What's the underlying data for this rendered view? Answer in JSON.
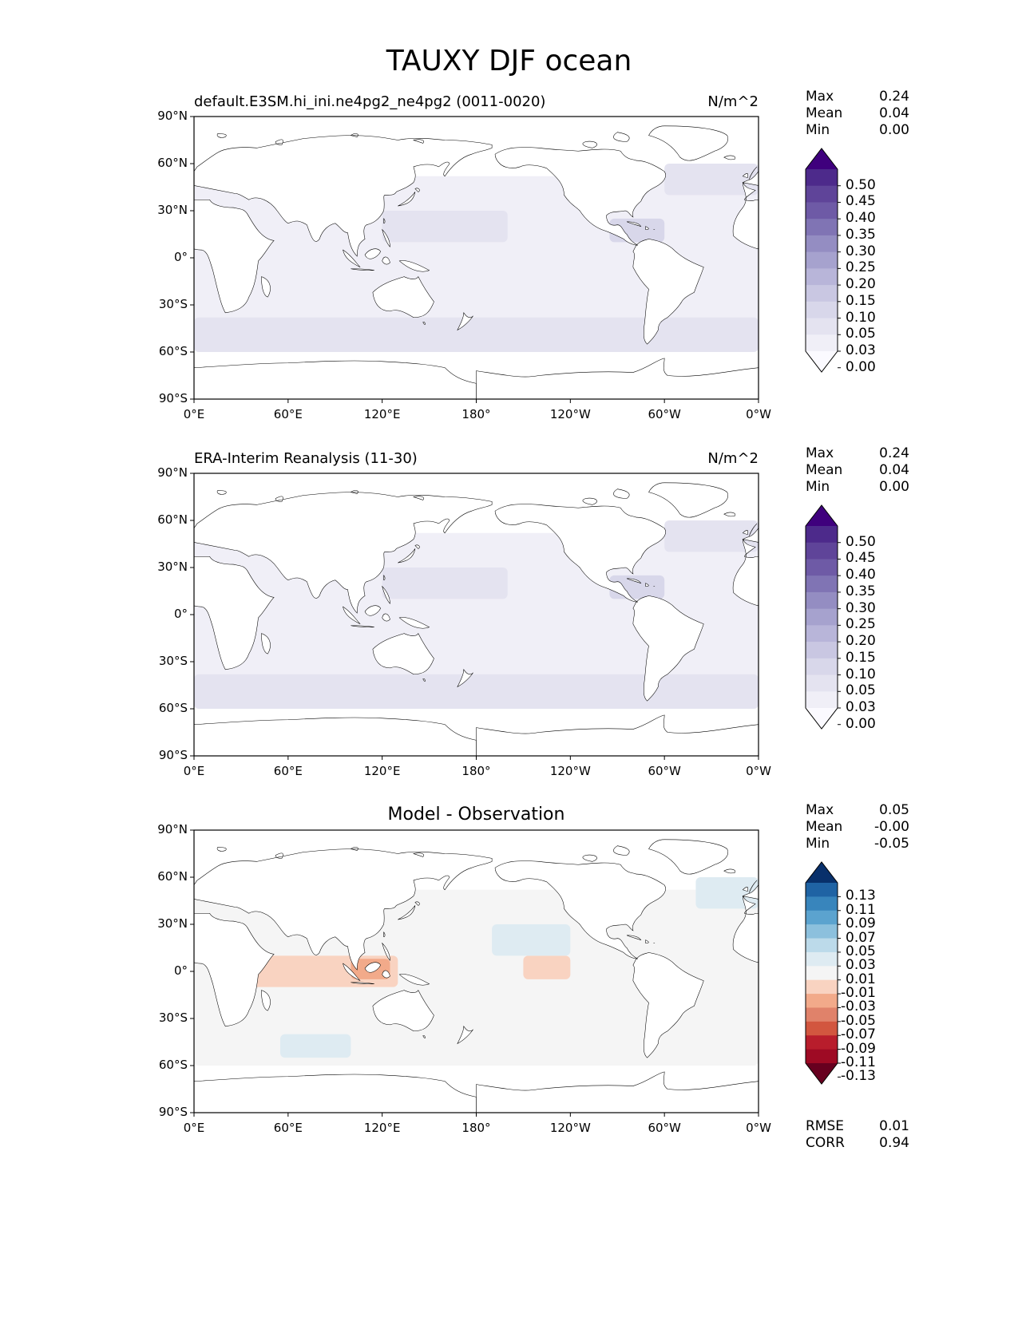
{
  "figure": {
    "title": "TAUXY DJF ocean"
  },
  "colors": {
    "purple_levels": [
      "#fbfaff",
      "#f0eff7",
      "#e4e3f0",
      "#d8d7ea",
      "#c9c7e2",
      "#b8b5d9",
      "#a6a2ce",
      "#948dc2",
      "#8074b4",
      "#6e5aa6",
      "#5f4499",
      "#4d2a8b",
      "#3f007d"
    ],
    "diff_levels": [
      "#67001f",
      "#9e0a24",
      "#b81d2c",
      "#d2563f",
      "#e0826a",
      "#f2aa8a",
      "#f9d3c1",
      "#f5f5f5",
      "#deebf2",
      "#bcdaea",
      "#8cc0dd",
      "#5ba3cf",
      "#3885bc",
      "#1f63a4",
      "#08306b"
    ],
    "land": "#ffffff",
    "coast": "#000000"
  },
  "panels": [
    {
      "left_title": "default.E3SM.hi_ini.ne4pg2_ne4pg2 (0011-0020)",
      "right_title": "N/m^2",
      "center_title": "",
      "stats": [
        {
          "label": "Max",
          "value": "0.24"
        },
        {
          "label": "Mean",
          "value": "0.04"
        },
        {
          "label": "Min",
          "value": "0.00"
        }
      ],
      "colorbar_labels": [
        "0.50",
        "0.45",
        "0.40",
        "0.35",
        "0.30",
        "0.25",
        "0.20",
        "0.15",
        "0.10",
        "0.05",
        "0.03",
        "0.00"
      ],
      "metrics": []
    },
    {
      "left_title": "ERA-Interim Reanalysis (11-30)",
      "right_title": "N/m^2",
      "center_title": "",
      "stats": [
        {
          "label": "Max",
          "value": "0.24"
        },
        {
          "label": "Mean",
          "value": "0.04"
        },
        {
          "label": "Min",
          "value": "0.00"
        }
      ],
      "colorbar_labels": [
        "0.50",
        "0.45",
        "0.40",
        "0.35",
        "0.30",
        "0.25",
        "0.20",
        "0.15",
        "0.10",
        "0.05",
        "0.03",
        "0.00"
      ],
      "metrics": []
    },
    {
      "left_title": "",
      "right_title": "",
      "center_title": "Model - Observation",
      "stats": [
        {
          "label": "Max",
          "value": "0.05"
        },
        {
          "label": "Mean",
          "value": "-0.00"
        },
        {
          "label": "Min",
          "value": "-0.05"
        }
      ],
      "colorbar_labels": [
        "0.13",
        "0.11",
        "0.09",
        "0.07",
        "0.05",
        "0.03",
        "0.01",
        "-0.01",
        "-0.03",
        "-0.05",
        "-0.07",
        "-0.09",
        "-0.11",
        "-0.13"
      ],
      "metrics": [
        {
          "label": "RMSE",
          "value": "0.01"
        },
        {
          "label": "CORR",
          "value": "0.94"
        }
      ]
    }
  ],
  "axes": {
    "lat_ticks": [
      "90°N",
      "60°N",
      "30°N",
      "0°",
      "30°S",
      "60°S",
      "90°S"
    ],
    "lon_ticks": [
      "0°E",
      "60°E",
      "120°E",
      "180°",
      "120°W",
      "60°W",
      "0°W"
    ]
  },
  "chart_data": [
    {
      "type": "heatmap",
      "title": "default.E3SM.hi_ini.ne4pg2_ne4pg2 (0011-0020)",
      "units": "N/m^2",
      "projection": "PlateCarree",
      "xlim": [
        0,
        360
      ],
      "ylim": [
        -90,
        90
      ],
      "x_ticks": [
        "0°E",
        "60°E",
        "120°E",
        "180°",
        "120°W",
        "60°W",
        "0°W"
      ],
      "y_ticks": [
        "90°N",
        "60°N",
        "30°N",
        "0°",
        "30°S",
        "60°S",
        "90°S"
      ],
      "levels": [
        0.0,
        0.03,
        0.05,
        0.1,
        0.15,
        0.2,
        0.25,
        0.3,
        0.35,
        0.4,
        0.45,
        0.5
      ],
      "stats": {
        "max": 0.24,
        "mean": 0.04,
        "min": 0.0
      },
      "regions": [
        {
          "lon": [
            0,
            360
          ],
          "lat": [
            -60,
            52
          ],
          "value": 0.04
        },
        {
          "lon": [
            0,
            360
          ],
          "lat": [
            -60,
            -38
          ],
          "value": 0.08
        },
        {
          "lon": [
            120,
            200
          ],
          "lat": [
            10,
            30
          ],
          "value": 0.09
        },
        {
          "lon": [
            265,
            300
          ],
          "lat": [
            10,
            25
          ],
          "value": 0.11
        },
        {
          "lon": [
            300,
            360
          ],
          "lat": [
            40,
            60
          ],
          "value": 0.08
        }
      ]
    },
    {
      "type": "heatmap",
      "title": "ERA-Interim Reanalysis (11-30)",
      "units": "N/m^2",
      "projection": "PlateCarree",
      "xlim": [
        0,
        360
      ],
      "ylim": [
        -90,
        90
      ],
      "x_ticks": [
        "0°E",
        "60°E",
        "120°E",
        "180°",
        "120°W",
        "60°W",
        "0°W"
      ],
      "y_ticks": [
        "90°N",
        "60°N",
        "30°N",
        "0°",
        "30°S",
        "60°S",
        "90°S"
      ],
      "levels": [
        0.0,
        0.03,
        0.05,
        0.1,
        0.15,
        0.2,
        0.25,
        0.3,
        0.35,
        0.4,
        0.45,
        0.5
      ],
      "stats": {
        "max": 0.24,
        "mean": 0.04,
        "min": 0.0
      },
      "regions": [
        {
          "lon": [
            0,
            360
          ],
          "lat": [
            -60,
            52
          ],
          "value": 0.04
        },
        {
          "lon": [
            0,
            360
          ],
          "lat": [
            -60,
            -38
          ],
          "value": 0.08
        },
        {
          "lon": [
            120,
            200
          ],
          "lat": [
            10,
            30
          ],
          "value": 0.08
        },
        {
          "lon": [
            265,
            300
          ],
          "lat": [
            10,
            25
          ],
          "value": 0.12
        },
        {
          "lon": [
            300,
            360
          ],
          "lat": [
            40,
            60
          ],
          "value": 0.08
        }
      ]
    },
    {
      "type": "heatmap",
      "title": "Model - Observation",
      "projection": "PlateCarree",
      "xlim": [
        0,
        360
      ],
      "ylim": [
        -90,
        90
      ],
      "x_ticks": [
        "0°E",
        "60°E",
        "120°E",
        "180°",
        "120°W",
        "60°W",
        "0°W"
      ],
      "y_ticks": [
        "90°N",
        "60°N",
        "30°N",
        "0°",
        "30°S",
        "60°S",
        "90°S"
      ],
      "levels": [
        -0.13,
        -0.11,
        -0.09,
        -0.07,
        -0.05,
        -0.03,
        -0.01,
        0.01,
        0.03,
        0.05,
        0.07,
        0.09,
        0.11,
        0.13
      ],
      "stats": {
        "max": 0.05,
        "mean": -0.0,
        "min": -0.05,
        "rmse": 0.01,
        "corr": 0.94
      },
      "regions": [
        {
          "lon": [
            0,
            360
          ],
          "lat": [
            -60,
            52
          ],
          "value": 0.0
        },
        {
          "lon": [
            30,
            130
          ],
          "lat": [
            -10,
            10
          ],
          "value": -0.02
        },
        {
          "lon": [
            100,
            125
          ],
          "lat": [
            -5,
            8
          ],
          "value": -0.04
        },
        {
          "lon": [
            210,
            240
          ],
          "lat": [
            -5,
            10
          ],
          "value": -0.02
        },
        {
          "lon": [
            55,
            100
          ],
          "lat": [
            -55,
            -40
          ],
          "value": 0.02
        },
        {
          "lon": [
            190,
            240
          ],
          "lat": [
            10,
            30
          ],
          "value": 0.02
        },
        {
          "lon": [
            320,
            360
          ],
          "lat": [
            40,
            60
          ],
          "value": 0.02
        }
      ]
    }
  ]
}
